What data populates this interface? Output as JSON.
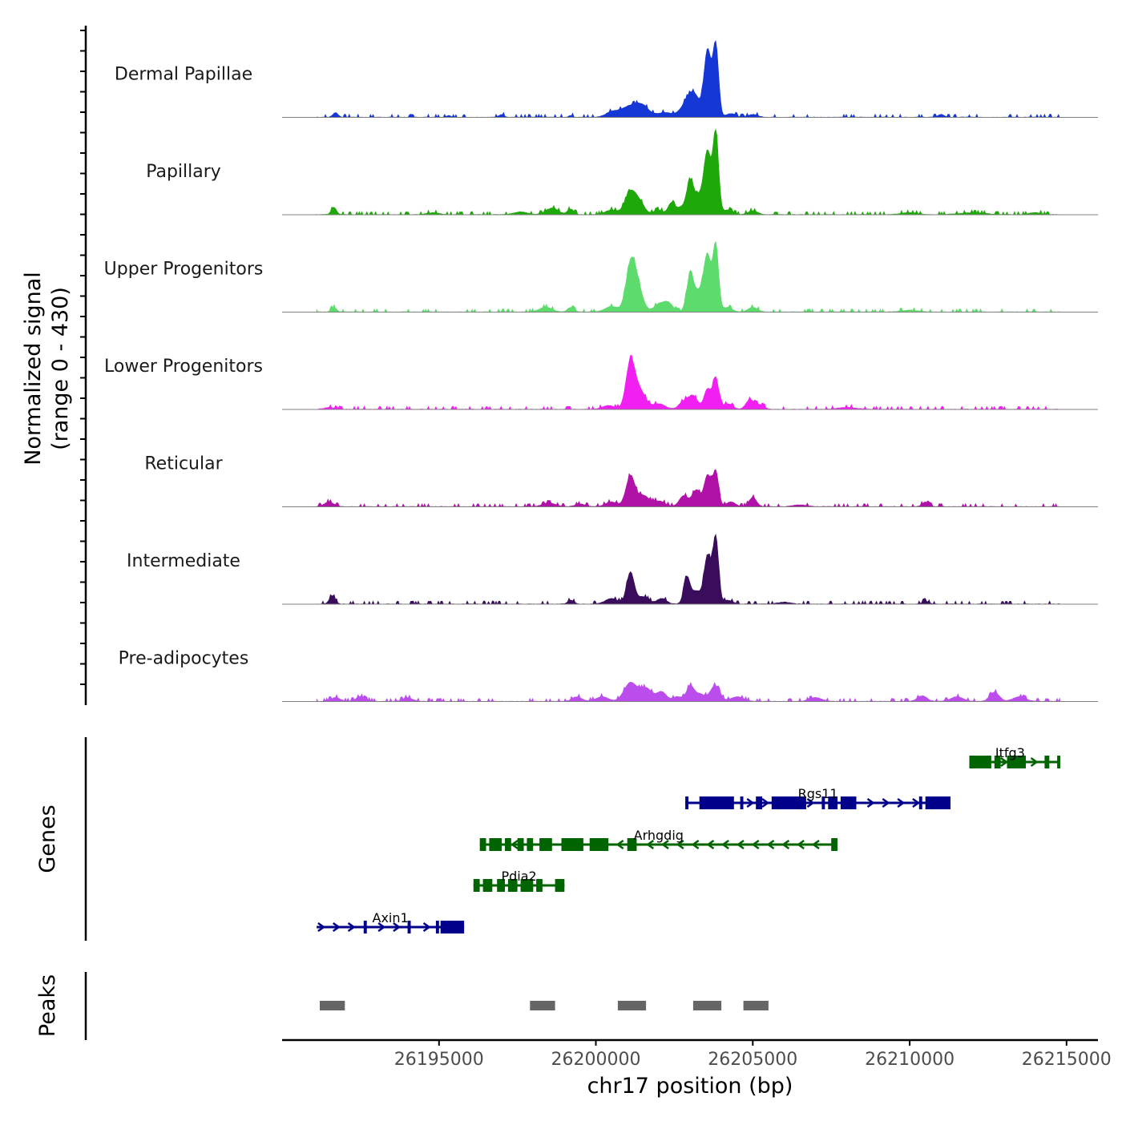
{
  "chart_data": {
    "type": "area",
    "title": "",
    "chromosome": "chr17",
    "xlabel": "chr17 position (bp)",
    "ylabel_line1": "Normalized signal",
    "ylabel_line2": "(range 0 - 430)",
    "yrange": [
      0,
      430
    ],
    "xlim": [
      26190000,
      26216000
    ],
    "x_ticks": [
      26195000,
      26200000,
      26205000,
      26210000,
      26215000
    ],
    "x_tick_labels": [
      "26195000",
      "26200000",
      "26205000",
      "26210000",
      "26215000"
    ],
    "signal_tracks": [
      {
        "name": "Dermal Papillae",
        "color": "#1537d6",
        "peaks": [
          [
            26191700,
            0.05,
            80
          ],
          [
            26195300,
            0.02,
            60
          ],
          [
            26197000,
            0.03,
            80
          ],
          [
            26199200,
            0.02,
            60
          ],
          [
            26200500,
            0.05,
            200
          ],
          [
            26201100,
            0.12,
            300
          ],
          [
            26201500,
            0.09,
            200
          ],
          [
            26202200,
            0.05,
            250
          ],
          [
            26202900,
            0.14,
            200
          ],
          [
            26203150,
            0.2,
            180
          ],
          [
            26203560,
            0.72,
            110
          ],
          [
            26203820,
            0.78,
            90
          ],
          [
            26204300,
            0.04,
            150
          ],
          [
            26205000,
            0.03,
            150
          ],
          [
            26211000,
            0.03,
            100
          ]
        ]
      },
      {
        "name": "Papillary",
        "color": "#1fa80a",
        "peaks": [
          [
            26191650,
            0.08,
            80
          ],
          [
            26194800,
            0.02,
            200
          ],
          [
            26197600,
            0.03,
            200
          ],
          [
            26198600,
            0.07,
            200
          ],
          [
            26199200,
            0.06,
            100
          ],
          [
            26200500,
            0.05,
            200
          ],
          [
            26201100,
            0.24,
            170
          ],
          [
            26201400,
            0.12,
            160
          ],
          [
            26202000,
            0.05,
            150
          ],
          [
            26202400,
            0.12,
            100
          ],
          [
            26202700,
            0.08,
            150
          ],
          [
            26203000,
            0.32,
            110
          ],
          [
            26203300,
            0.2,
            180
          ],
          [
            26203560,
            0.62,
            110
          ],
          [
            26203820,
            0.88,
            90
          ],
          [
            26204200,
            0.05,
            150
          ],
          [
            26205000,
            0.04,
            150
          ],
          [
            26210000,
            0.02,
            250
          ],
          [
            26212000,
            0.02,
            400
          ],
          [
            26214000,
            0.02,
            200
          ]
        ]
      },
      {
        "name": "Upper Progenitors",
        "color": "#5ddc6d",
        "peaks": [
          [
            26191650,
            0.05,
            80
          ],
          [
            26198400,
            0.05,
            200
          ],
          [
            26199200,
            0.05,
            100
          ],
          [
            26200500,
            0.06,
            200
          ],
          [
            26201100,
            0.42,
            150
          ],
          [
            26201300,
            0.28,
            180
          ],
          [
            26202000,
            0.08,
            150
          ],
          [
            26202300,
            0.1,
            150
          ],
          [
            26203000,
            0.36,
            110
          ],
          [
            26203300,
            0.22,
            180
          ],
          [
            26203560,
            0.55,
            110
          ],
          [
            26203820,
            0.72,
            90
          ],
          [
            26204200,
            0.05,
            150
          ],
          [
            26205000,
            0.05,
            150
          ],
          [
            26210000,
            0.02,
            250
          ]
        ]
      },
      {
        "name": "Lower Progenitors",
        "color": "#f21ff2",
        "peaks": [
          [
            26191500,
            0.02,
            150
          ],
          [
            26200400,
            0.04,
            200
          ],
          [
            26201100,
            0.5,
            140
          ],
          [
            26201400,
            0.2,
            180
          ],
          [
            26202000,
            0.06,
            200
          ],
          [
            26202800,
            0.08,
            150
          ],
          [
            26203100,
            0.14,
            150
          ],
          [
            26203560,
            0.22,
            110
          ],
          [
            26203820,
            0.34,
            90
          ],
          [
            26204200,
            0.06,
            150
          ],
          [
            26204900,
            0.1,
            120
          ],
          [
            26205200,
            0.05,
            150
          ],
          [
            26208000,
            0.02,
            300
          ]
        ]
      },
      {
        "name": "Reticular",
        "color": "#b012a8",
        "peaks": [
          [
            26191500,
            0.05,
            150
          ],
          [
            26198500,
            0.04,
            200
          ],
          [
            26199500,
            0.03,
            150
          ],
          [
            26200500,
            0.05,
            200
          ],
          [
            26201100,
            0.33,
            140
          ],
          [
            26201500,
            0.12,
            180
          ],
          [
            26202000,
            0.06,
            200
          ],
          [
            26202800,
            0.12,
            140
          ],
          [
            26203200,
            0.18,
            130
          ],
          [
            26203560,
            0.34,
            110
          ],
          [
            26203820,
            0.38,
            90
          ],
          [
            26204300,
            0.05,
            150
          ],
          [
            26205000,
            0.1,
            120
          ],
          [
            26206500,
            0.02,
            200
          ],
          [
            26210500,
            0.05,
            100
          ]
        ]
      },
      {
        "name": "Intermediate",
        "color": "#3a0c5c",
        "peaks": [
          [
            26191600,
            0.09,
            90
          ],
          [
            26199200,
            0.04,
            100
          ],
          [
            26200500,
            0.06,
            200
          ],
          [
            26201100,
            0.34,
            120
          ],
          [
            26201500,
            0.08,
            180
          ],
          [
            26202100,
            0.06,
            150
          ],
          [
            26202900,
            0.28,
            100
          ],
          [
            26203200,
            0.14,
            150
          ],
          [
            26203560,
            0.52,
            110
          ],
          [
            26203820,
            0.72,
            90
          ],
          [
            26204200,
            0.04,
            150
          ],
          [
            26206000,
            0.02,
            200
          ],
          [
            26210500,
            0.03,
            100
          ]
        ]
      },
      {
        "name": "Pre-adipocytes",
        "color": "#bc4ded",
        "peaks": [
          [
            26191700,
            0.04,
            150
          ],
          [
            26192500,
            0.05,
            150
          ],
          [
            26194000,
            0.04,
            150
          ],
          [
            26199400,
            0.05,
            150
          ],
          [
            26200200,
            0.05,
            200
          ],
          [
            26201100,
            0.2,
            200
          ],
          [
            26201600,
            0.14,
            200
          ],
          [
            26202100,
            0.1,
            150
          ],
          [
            26202600,
            0.05,
            150
          ],
          [
            26203000,
            0.15,
            120
          ],
          [
            26203300,
            0.08,
            180
          ],
          [
            26203800,
            0.17,
            150
          ],
          [
            26204500,
            0.05,
            200
          ],
          [
            26207000,
            0.04,
            200
          ],
          [
            26210400,
            0.06,
            150
          ],
          [
            26211500,
            0.05,
            200
          ],
          [
            26212700,
            0.1,
            150
          ],
          [
            26213500,
            0.05,
            200
          ]
        ]
      }
    ],
    "genes": [
      {
        "name": "Itfg3",
        "strand": "+",
        "color": "#006400",
        "start": 26211900,
        "end": 26214800,
        "row": 0,
        "exons": [
          [
            26211900,
            26212600
          ],
          [
            26212700,
            26212900
          ],
          [
            26213100,
            26213700
          ],
          [
            26214300,
            26214450
          ],
          [
            26214700,
            26214800
          ]
        ]
      },
      {
        "name": "Rgs11",
        "strand": "+",
        "color": "#00008b",
        "start": 26202850,
        "end": 26211300,
        "row": 1,
        "exons": [
          [
            26202850,
            26202950
          ],
          [
            26203300,
            26204400
          ],
          [
            26204600,
            26204700
          ],
          [
            26205100,
            26205300
          ],
          [
            26205600,
            26206700
          ],
          [
            26207200,
            26207300
          ],
          [
            26207400,
            26207700
          ],
          [
            26207800,
            26208300
          ],
          [
            26210300,
            26210400
          ],
          [
            26210500,
            26211300
          ]
        ]
      },
      {
        "name": "Arhgdig",
        "strand": "-",
        "color": "#006400",
        "start": 26196300,
        "end": 26207700,
        "row": 2,
        "exons": [
          [
            26196300,
            26196500
          ],
          [
            26196600,
            26197000
          ],
          [
            26197100,
            26197300
          ],
          [
            26197500,
            26197700
          ],
          [
            26197800,
            26198000
          ],
          [
            26198200,
            26198600
          ],
          [
            26198900,
            26199600
          ],
          [
            26199800,
            26200400
          ],
          [
            26201000,
            26201300
          ],
          [
            26207500,
            26207700
          ]
        ]
      },
      {
        "name": "Pdia2",
        "strand": "-",
        "color": "#006400",
        "start": 26196100,
        "end": 26199000,
        "row": 3,
        "exons": [
          [
            26196100,
            26196300
          ],
          [
            26196400,
            26196700
          ],
          [
            26196850,
            26197100
          ],
          [
            26197200,
            26197500
          ],
          [
            26197600,
            26198000
          ],
          [
            26198100,
            26198300
          ],
          [
            26198700,
            26199000
          ]
        ]
      },
      {
        "name": "Axin1",
        "strand": "+",
        "color": "#00008b",
        "start": 26191100,
        "end": 26195800,
        "row": 4,
        "exons": [
          [
            26192600,
            26192700
          ],
          [
            26194000,
            26194100
          ],
          [
            26194900,
            26195000
          ],
          [
            26195050,
            26195800
          ]
        ]
      }
    ],
    "peak_regions": [
      [
        26191200,
        26192000
      ],
      [
        26197900,
        26198700
      ],
      [
        26200700,
        26201600
      ],
      [
        26203100,
        26204000
      ],
      [
        26204700,
        26205500
      ]
    ],
    "panel_titles": [
      "Genes",
      "Peaks"
    ]
  }
}
